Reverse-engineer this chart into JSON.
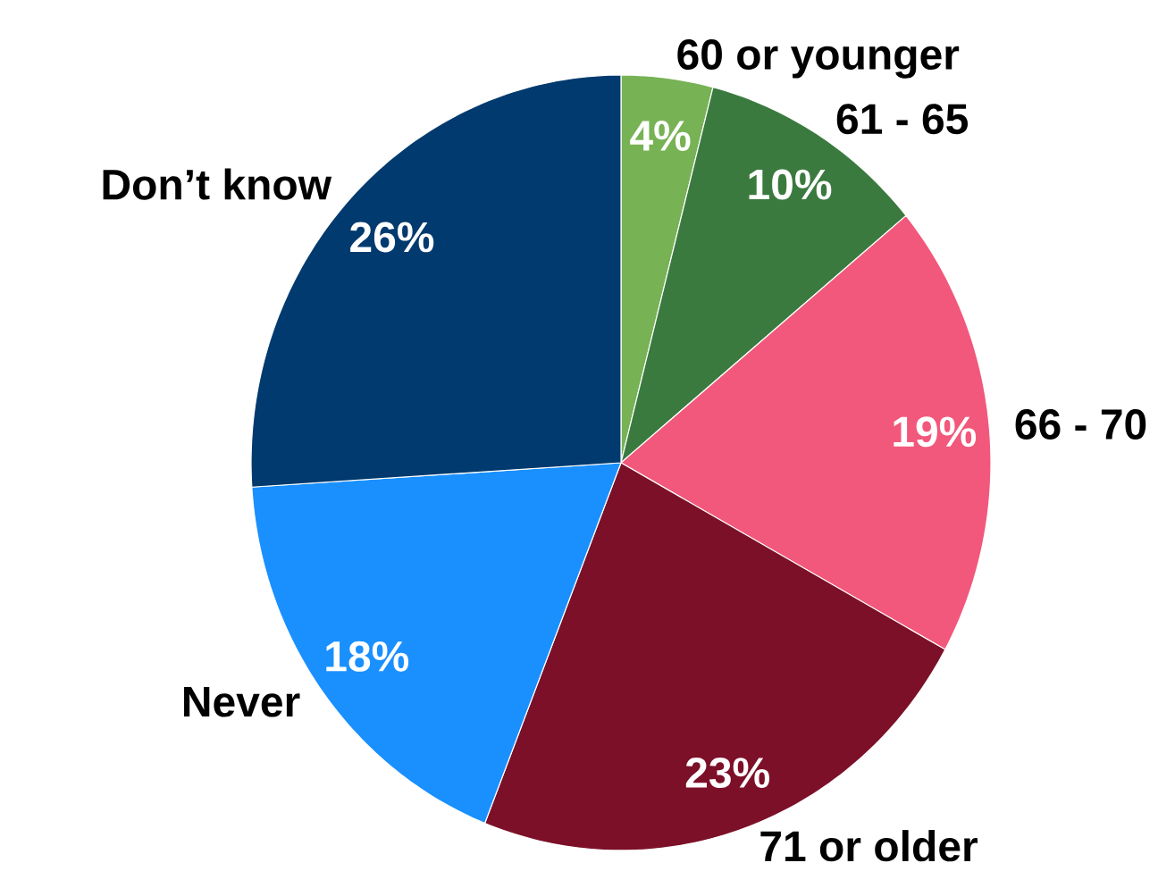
{
  "chart_data": {
    "type": "pie",
    "categories": [
      "60 or younger",
      "61 - 65",
      "66 - 70",
      "71 or older",
      "Never",
      "Don’t know"
    ],
    "values": [
      4,
      10,
      19,
      23,
      18,
      26
    ],
    "colors": [
      "#77b255",
      "#3b7a3f",
      "#f2587b",
      "#7c1028",
      "#1a90ff",
      "#003a6e"
    ],
    "value_labels": [
      "4%",
      "10%",
      "19%",
      "23%",
      "18%",
      "26%"
    ]
  }
}
